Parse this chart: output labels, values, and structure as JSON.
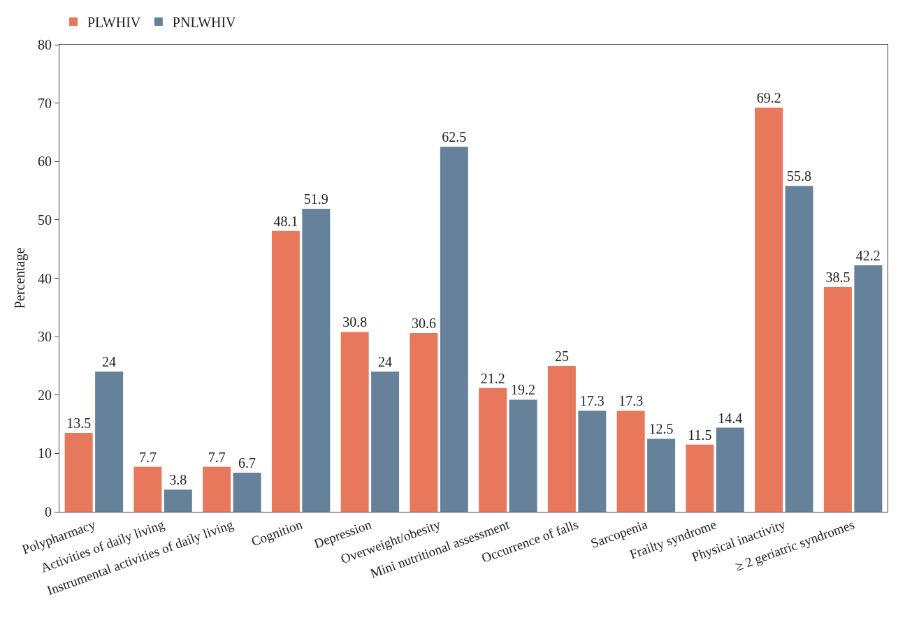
{
  "chart_data": {
    "type": "bar",
    "ylabel": "Percentage",
    "categories": [
      "Polypharmacy",
      "Activities of daily living",
      "Instrumental activities of daily living",
      "Cognition",
      "Depression",
      "Overweight/obesity",
      "Mini nutritional assessment",
      "Occurrence of falls",
      "Sarcopenia",
      "Frailty syndrome",
      "Physical inactivity",
      "≥ 2 geriatric syndromes"
    ],
    "series": [
      {
        "name": "PLWHIV",
        "color": "#e8785b",
        "values": [
          13.5,
          7.7,
          7.7,
          48.1,
          30.8,
          30.6,
          21.2,
          25,
          17.3,
          11.5,
          69.2,
          38.5
        ]
      },
      {
        "name": "PNLWHIV",
        "color": "#66829a",
        "values": [
          24,
          3.8,
          6.7,
          51.9,
          24,
          62.5,
          19.2,
          17.3,
          12.5,
          14.4,
          55.8,
          42.2
        ]
      }
    ],
    "ylim": [
      0,
      80
    ],
    "yticks": [
      0,
      10,
      20,
      30,
      40,
      50,
      60,
      70,
      80
    ],
    "grid": false,
    "legend": "top left",
    "data_labels": true
  }
}
